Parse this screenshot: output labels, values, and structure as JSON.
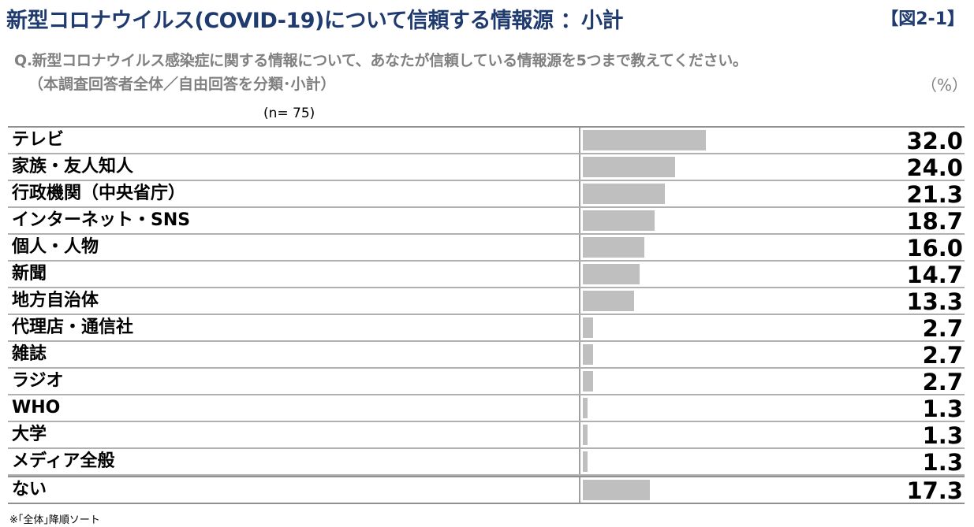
{
  "header": {
    "title": "新型コロナウイルス(COVID-19)について信頼する情報源 ：小計",
    "figure_label": "【図2-1】",
    "question_line1": "Q.新型コロナウイルス感染症に関する情報について、あなたが信頼している情報源を5つまで教えてください。",
    "question_line2": "（本調査回答者全体／自由回答を分類･小計）",
    "unit": "（%）",
    "sample_size": "(n=  75)"
  },
  "footer": {
    "note": "※｢全体｣降順ソート"
  },
  "colors": {
    "title": "#1f3a6e",
    "bar": "#bfbfbf",
    "subtitle": "#808080"
  },
  "chart_data": {
    "type": "bar",
    "orientation": "horizontal",
    "categories": [
      "テレビ",
      "家族・友人知人",
      "行政機関（中央省庁）",
      "インターネット・SNS",
      "個人・人物",
      "新聞",
      "地方自治体",
      "代理店・通信社",
      "雑誌",
      "ラジオ",
      "WHO",
      "大学",
      "メディア全般",
      "ない"
    ],
    "values": [
      32.0,
      24.0,
      21.3,
      18.7,
      16.0,
      14.7,
      13.3,
      2.7,
      2.7,
      2.7,
      1.3,
      1.3,
      1.3,
      17.3
    ],
    "value_labels": [
      "32.0",
      "24.0",
      "21.3",
      "18.7",
      "16.0",
      "14.7",
      "13.3",
      "2.7",
      "2.7",
      "2.7",
      "1.3",
      "1.3",
      "1.3",
      "17.3"
    ],
    "xlim": [
      0,
      100
    ],
    "grid": false,
    "legend": "none"
  }
}
